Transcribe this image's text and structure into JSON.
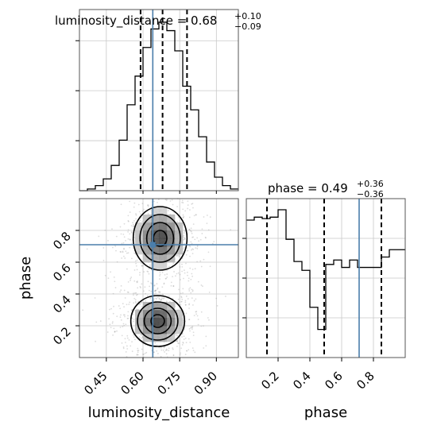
{
  "chart_data": {
    "type": "corner",
    "parameters": [
      "luminosity_distance",
      "phase"
    ],
    "xlabel_luminosity_distance": "luminosity_distance",
    "xlabel_phase": "phase",
    "ylabel_phase": "phase",
    "titles": {
      "luminosity_distance": {
        "label": "luminosity_distance = 0.68",
        "plus": "+0.10",
        "minus": "−0.09"
      },
      "phase": {
        "label": "phase = 0.49",
        "plus": "+0.36",
        "minus": "−0.36"
      }
    },
    "luminosity_distance": {
      "range": [
        0.34,
        0.99
      ],
      "ticks": [
        0.45,
        0.6,
        0.75,
        0.9
      ],
      "tick_labels": [
        "0.45",
        "0.60",
        "0.75",
        "0.90"
      ],
      "quantiles": [
        0.59,
        0.68,
        0.78
      ],
      "truth": 0.64,
      "hist_edges": [
        0.34,
        0.3725,
        0.405,
        0.4375,
        0.47,
        0.5025,
        0.535,
        0.5675,
        0.6,
        0.6325,
        0.665,
        0.6975,
        0.73,
        0.7625,
        0.795,
        0.8275,
        0.86,
        0.8925,
        0.925,
        0.9575,
        0.99
      ],
      "hist_counts": [
        0.0,
        0.01,
        0.03,
        0.07,
        0.15,
        0.3,
        0.51,
        0.68,
        0.85,
        0.96,
        1.0,
        0.95,
        0.83,
        0.62,
        0.48,
        0.32,
        0.17,
        0.08,
        0.03,
        0.01
      ]
    },
    "phase": {
      "range": [
        0.0,
        1.0
      ],
      "ticks": [
        0.2,
        0.4,
        0.6,
        0.8
      ],
      "tick_labels": [
        "0.2",
        "0.4",
        "0.6",
        "0.8"
      ],
      "quantiles": [
        0.13,
        0.49,
        0.85
      ],
      "truth": 0.71,
      "hist_edges": [
        0.0,
        0.05,
        0.1,
        0.15,
        0.2,
        0.25,
        0.3,
        0.35,
        0.4,
        0.45,
        0.5,
        0.55,
        0.6,
        0.65,
        0.7,
        0.75,
        0.8,
        0.85,
        0.9,
        0.95,
        1.0
      ],
      "hist_counts": [
        0.93,
        0.95,
        0.94,
        0.95,
        1.0,
        0.8,
        0.65,
        0.59,
        0.34,
        0.19,
        0.63,
        0.66,
        0.61,
        0.66,
        0.61,
        0.61,
        0.61,
        0.68,
        0.73,
        0.73
      ]
    },
    "joint": {
      "x_param": "luminosity_distance",
      "y_param": "phase",
      "truth": [
        0.64,
        0.71
      ],
      "density_modes": [
        {
          "x": 0.66,
          "y": 0.23,
          "sx": 0.055,
          "sy": 0.08
        },
        {
          "x": 0.67,
          "y": 0.75,
          "sx": 0.055,
          "sy": 0.1
        }
      ]
    },
    "truth_color": "#4a7eab",
    "hist_color": "#000000",
    "grid": true
  }
}
